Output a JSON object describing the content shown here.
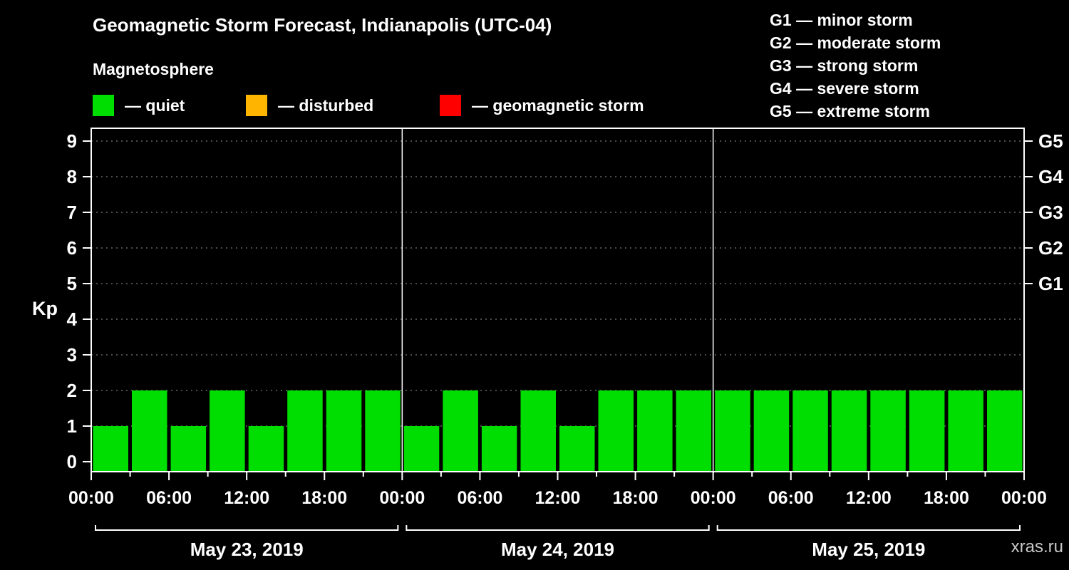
{
  "title": "Geomagnetic Storm Forecast, Indianapolis (UTC-04)",
  "subtitle": "Magnetosphere",
  "legend": {
    "items": [
      {
        "label": "— quiet",
        "color": "#00dd00"
      },
      {
        "label": "— disturbed",
        "color": "#ffb400"
      },
      {
        "label": "— geomagnetic storm",
        "color": "#ff0000"
      }
    ]
  },
  "storm_scale_legend": [
    {
      "label": "G1 — minor storm"
    },
    {
      "label": "G2 — moderate storm"
    },
    {
      "label": "G3 — strong storm"
    },
    {
      "label": "G4 — severe storm"
    },
    {
      "label": "G5 — extreme storm"
    }
  ],
  "watermark": "xras.ru",
  "chart_data": {
    "type": "bar",
    "title": "Geomagnetic Storm Forecast, Indianapolis (UTC-04)",
    "ylabel": "Kp",
    "ylim": [
      0,
      9.6
    ],
    "grid": "dashed-horizontal",
    "bar_color": "#00dd00",
    "hours_per_bar": 3,
    "y_ticks": [
      0,
      1,
      2,
      3,
      4,
      5,
      6,
      7,
      8,
      9
    ],
    "right_axis": [
      {
        "kp": 5,
        "label": "G1"
      },
      {
        "kp": 6,
        "label": "G2"
      },
      {
        "kp": 7,
        "label": "G3"
      },
      {
        "kp": 8,
        "label": "G4"
      },
      {
        "kp": 9,
        "label": "G5"
      }
    ],
    "x_tick_labels": [
      "00:00",
      "06:00",
      "12:00",
      "18:00",
      "00:00",
      "06:00",
      "12:00",
      "18:00",
      "00:00",
      "06:00",
      "12:00",
      "18:00",
      "00:00"
    ],
    "days": [
      {
        "date": "May 23, 2019",
        "values": [
          1,
          2,
          1,
          2,
          1,
          2,
          2,
          2
        ]
      },
      {
        "date": "May 24, 2019",
        "values": [
          1,
          2,
          1,
          2,
          1,
          2,
          2,
          2
        ]
      },
      {
        "date": "May 25, 2019",
        "values": [
          2,
          2,
          2,
          2,
          2,
          2,
          2,
          2
        ]
      }
    ]
  }
}
